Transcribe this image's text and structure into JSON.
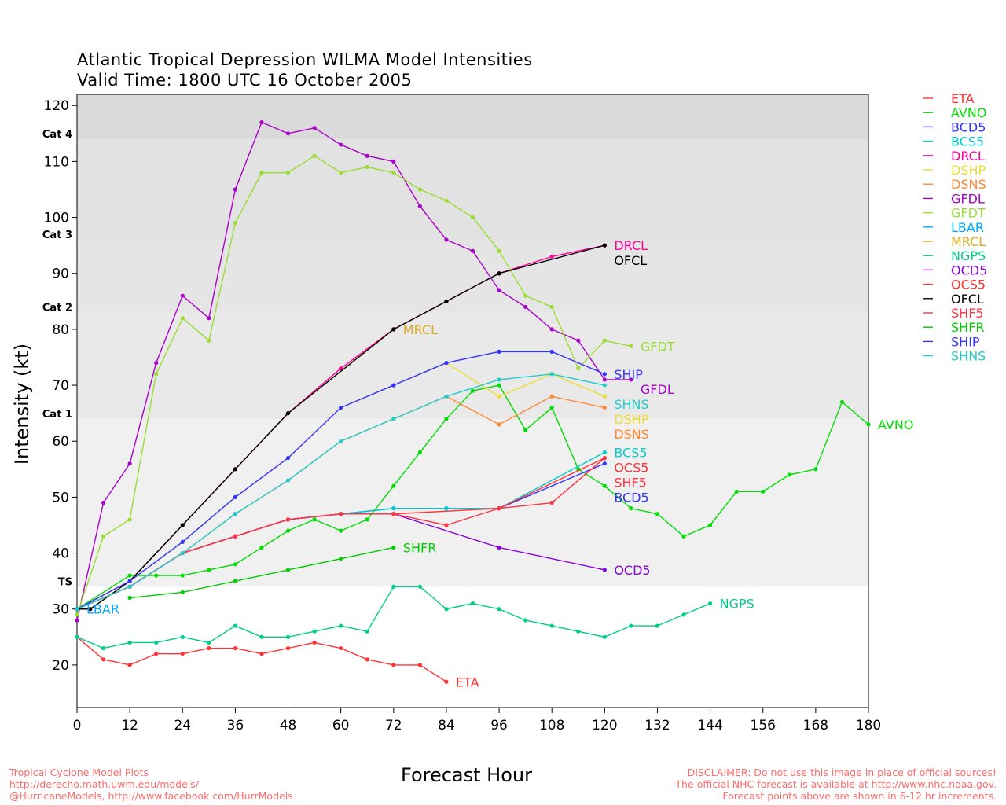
{
  "chart_data": {
    "type": "line",
    "title": "Atlantic Tropical Depression WILMA Model Intensities",
    "subtitle": "Valid Time: 1800 UTC 16 October 2005",
    "xlabel": "Forecast Hour",
    "ylabel": "Intensity (kt)",
    "xlim": [
      0,
      180
    ],
    "ylim": [
      12.4,
      122
    ],
    "xticks": [
      0,
      12,
      24,
      36,
      48,
      60,
      72,
      84,
      96,
      108,
      120,
      132,
      144,
      156,
      168,
      180
    ],
    "yticks": [
      20,
      30,
      40,
      50,
      60,
      70,
      80,
      90,
      100,
      110,
      120
    ],
    "grid": false,
    "legend_placement": "right",
    "intensity_bands": [
      {
        "label": "TS",
        "kt": 34,
        "color": "#f0f0f0"
      },
      {
        "label": "Cat 1",
        "kt": 64,
        "color": "#e9e9e9"
      },
      {
        "label": "Cat 2",
        "kt": 83,
        "color": "#e5e5e5"
      },
      {
        "label": "Cat 3",
        "kt": 96,
        "color": "#e2e2e2"
      },
      {
        "label": "Cat 4",
        "kt": 114,
        "color": "#dadada"
      }
    ],
    "series": [
      {
        "name": "ETA",
        "color": "#ff3333",
        "points": [
          [
            0,
            25
          ],
          [
            6,
            21
          ],
          [
            12,
            20
          ],
          [
            18,
            22
          ],
          [
            24,
            22
          ],
          [
            30,
            23
          ],
          [
            36,
            23
          ],
          [
            42,
            22
          ],
          [
            48,
            23
          ],
          [
            54,
            24
          ],
          [
            60,
            23
          ],
          [
            66,
            21
          ],
          [
            72,
            20
          ],
          [
            78,
            20
          ],
          [
            84,
            17
          ]
        ]
      },
      {
        "name": "AVNO",
        "color": "#00dd00",
        "points": [
          [
            0,
            30
          ],
          [
            12,
            36
          ],
          [
            18,
            36
          ],
          [
            24,
            36
          ],
          [
            30,
            37
          ],
          [
            36,
            38
          ],
          [
            42,
            41
          ],
          [
            48,
            44
          ],
          [
            54,
            46
          ],
          [
            60,
            44
          ],
          [
            66,
            46
          ],
          [
            72,
            52
          ],
          [
            78,
            58
          ],
          [
            84,
            64
          ],
          [
            90,
            69
          ],
          [
            96,
            70
          ],
          [
            102,
            62
          ],
          [
            108,
            66
          ],
          [
            114,
            55
          ],
          [
            120,
            52
          ],
          [
            126,
            48
          ],
          [
            132,
            47
          ],
          [
            138,
            43
          ],
          [
            144,
            45
          ],
          [
            150,
            51
          ],
          [
            156,
            51
          ],
          [
            162,
            54
          ],
          [
            168,
            55
          ],
          [
            174,
            67
          ],
          [
            180,
            63
          ]
        ]
      },
      {
        "name": "BCD5",
        "color": "#3333ff",
        "points": [
          [
            0,
            30
          ],
          [
            12,
            34
          ],
          [
            24,
            40
          ],
          [
            36,
            43
          ],
          [
            48,
            46
          ],
          [
            60,
            47
          ],
          [
            72,
            48
          ],
          [
            84,
            48
          ],
          [
            96,
            48
          ],
          [
            120,
            56
          ]
        ]
      },
      {
        "name": "BCS5",
        "color": "#00cccc",
        "points": [
          [
            0,
            30
          ],
          [
            12,
            34
          ],
          [
            24,
            40
          ],
          [
            36,
            43
          ],
          [
            48,
            46
          ],
          [
            60,
            47
          ],
          [
            72,
            48
          ],
          [
            84,
            48
          ],
          [
            96,
            48
          ],
          [
            120,
            58
          ]
        ]
      },
      {
        "name": "DRCL",
        "color": "#ff0099",
        "points": [
          [
            0,
            30
          ],
          [
            12,
            35
          ],
          [
            24,
            45
          ],
          [
            36,
            55
          ],
          [
            48,
            65
          ],
          [
            60,
            73
          ],
          [
            72,
            80
          ],
          [
            84,
            85
          ],
          [
            96,
            90
          ],
          [
            108,
            93
          ],
          [
            120,
            95
          ]
        ]
      },
      {
        "name": "DSHP",
        "color": "#eedd33",
        "points": [
          [
            0,
            30
          ],
          [
            12,
            35
          ],
          [
            24,
            42
          ],
          [
            36,
            50
          ],
          [
            48,
            57
          ],
          [
            60,
            66
          ],
          [
            72,
            70
          ],
          [
            84,
            74
          ],
          [
            96,
            68
          ],
          [
            108,
            72
          ],
          [
            120,
            68
          ]
        ]
      },
      {
        "name": "DSNS",
        "color": "#ff8833",
        "points": [
          [
            0,
            30
          ],
          [
            12,
            34
          ],
          [
            24,
            40
          ],
          [
            36,
            47
          ],
          [
            48,
            53
          ],
          [
            60,
            60
          ],
          [
            72,
            64
          ],
          [
            84,
            68
          ],
          [
            96,
            63
          ],
          [
            108,
            68
          ],
          [
            120,
            66
          ]
        ]
      },
      {
        "name": "GFDL",
        "color": "#aa00cc",
        "points": [
          [
            0,
            28
          ],
          [
            6,
            49
          ],
          [
            12,
            56
          ],
          [
            18,
            74
          ],
          [
            24,
            86
          ],
          [
            30,
            82
          ],
          [
            36,
            105
          ],
          [
            42,
            117
          ],
          [
            48,
            115
          ],
          [
            54,
            116
          ],
          [
            60,
            113
          ],
          [
            66,
            111
          ],
          [
            72,
            110
          ],
          [
            78,
            102
          ],
          [
            84,
            96
          ],
          [
            90,
            94
          ],
          [
            96,
            87
          ],
          [
            102,
            84
          ],
          [
            108,
            80
          ],
          [
            114,
            78
          ],
          [
            120,
            71
          ],
          [
            126,
            71
          ]
        ]
      },
      {
        "name": "GFDT",
        "color": "#99dd33",
        "points": [
          [
            0,
            29
          ],
          [
            6,
            43
          ],
          [
            12,
            46
          ],
          [
            18,
            72
          ],
          [
            24,
            82
          ],
          [
            30,
            78
          ],
          [
            36,
            99
          ],
          [
            42,
            108
          ],
          [
            48,
            108
          ],
          [
            54,
            111
          ],
          [
            60,
            108
          ],
          [
            66,
            109
          ],
          [
            72,
            108
          ],
          [
            78,
            105
          ],
          [
            84,
            103
          ],
          [
            90,
            100
          ],
          [
            96,
            94
          ],
          [
            102,
            86
          ],
          [
            108,
            84
          ],
          [
            114,
            73
          ],
          [
            120,
            78
          ],
          [
            126,
            77
          ]
        ]
      },
      {
        "name": "LBAR",
        "color": "#00aaff",
        "points": [
          [
            0,
            30
          ]
        ]
      },
      {
        "name": "MRCL",
        "color": "#ddaa22",
        "points": [
          [
            0,
            30
          ],
          [
            12,
            35
          ],
          [
            24,
            45
          ],
          [
            36,
            55
          ],
          [
            48,
            65
          ],
          [
            72,
            80
          ]
        ]
      },
      {
        "name": "NGPS",
        "color": "#00cc88",
        "points": [
          [
            0,
            25
          ],
          [
            6,
            23
          ],
          [
            12,
            24
          ],
          [
            18,
            24
          ],
          [
            24,
            25
          ],
          [
            30,
            24
          ],
          [
            36,
            27
          ],
          [
            42,
            25
          ],
          [
            48,
            25
          ],
          [
            54,
            26
          ],
          [
            60,
            27
          ],
          [
            66,
            26
          ],
          [
            72,
            34
          ],
          [
            78,
            34
          ],
          [
            84,
            30
          ],
          [
            90,
            31
          ],
          [
            96,
            30
          ],
          [
            102,
            28
          ],
          [
            108,
            27
          ],
          [
            114,
            26
          ],
          [
            120,
            25
          ],
          [
            126,
            27
          ],
          [
            132,
            27
          ],
          [
            138,
            29
          ],
          [
            144,
            31
          ]
        ]
      },
      {
        "name": "OCD5",
        "color": "#8800dd",
        "points": [
          [
            0,
            30
          ],
          [
            12,
            34
          ],
          [
            24,
            40
          ],
          [
            36,
            43
          ],
          [
            48,
            46
          ],
          [
            60,
            47
          ],
          [
            72,
            47
          ],
          [
            96,
            41
          ],
          [
            120,
            37
          ]
        ]
      },
      {
        "name": "OCS5",
        "color": "#ff3333",
        "points": [
          [
            0,
            30
          ],
          [
            12,
            34
          ],
          [
            24,
            40
          ],
          [
            36,
            43
          ],
          [
            48,
            46
          ],
          [
            60,
            47
          ],
          [
            72,
            47
          ],
          [
            96,
            48
          ],
          [
            120,
            57
          ]
        ]
      },
      {
        "name": "OFCL",
        "color": "#000000",
        "points": [
          [
            0,
            30
          ],
          [
            3,
            30
          ],
          [
            12,
            35
          ],
          [
            24,
            45
          ],
          [
            36,
            55
          ],
          [
            48,
            65
          ],
          [
            72,
            80
          ],
          [
            84,
            85
          ],
          [
            96,
            90
          ],
          [
            120,
            95
          ]
        ]
      },
      {
        "name": "SHF5",
        "color": "#ff3344",
        "points": [
          [
            0,
            30
          ],
          [
            12,
            34
          ],
          [
            24,
            40
          ],
          [
            36,
            43
          ],
          [
            48,
            46
          ],
          [
            60,
            47
          ],
          [
            72,
            47
          ],
          [
            84,
            45
          ],
          [
            96,
            48
          ],
          [
            108,
            49
          ],
          [
            120,
            57
          ]
        ]
      },
      {
        "name": "SHFR",
        "color": "#00cc00",
        "points": [
          [
            12,
            32
          ],
          [
            24,
            33
          ],
          [
            36,
            35
          ],
          [
            48,
            37
          ],
          [
            60,
            39
          ],
          [
            72,
            41
          ]
        ]
      },
      {
        "name": "SHIP",
        "color": "#3333ff",
        "points": [
          [
            0,
            30
          ],
          [
            12,
            35
          ],
          [
            24,
            42
          ],
          [
            36,
            50
          ],
          [
            48,
            57
          ],
          [
            60,
            66
          ],
          [
            72,
            70
          ],
          [
            84,
            74
          ],
          [
            96,
            76
          ],
          [
            108,
            76
          ],
          [
            120,
            72
          ]
        ]
      },
      {
        "name": "SHNS",
        "color": "#22cccc",
        "points": [
          [
            0,
            30
          ],
          [
            12,
            34
          ],
          [
            24,
            40
          ],
          [
            36,
            47
          ],
          [
            48,
            53
          ],
          [
            60,
            60
          ],
          [
            72,
            64
          ],
          [
            84,
            68
          ],
          [
            96,
            71
          ],
          [
            108,
            72
          ],
          [
            120,
            70
          ]
        ]
      }
    ]
  },
  "footer": {
    "left": [
      "Tropical Cyclone Model Plots",
      "http://derecho.math.uwm.edu/models/",
      "@HurricaneModels, http://www.facebook.com/HurrModels"
    ],
    "right": [
      "DISCLAIMER: Do not use this image in place of official sources!",
      "The official NHC forecast is available at http://www.nhc.noaa.gov.",
      "Forecast points above are shown in 6-12 hr increments."
    ]
  }
}
